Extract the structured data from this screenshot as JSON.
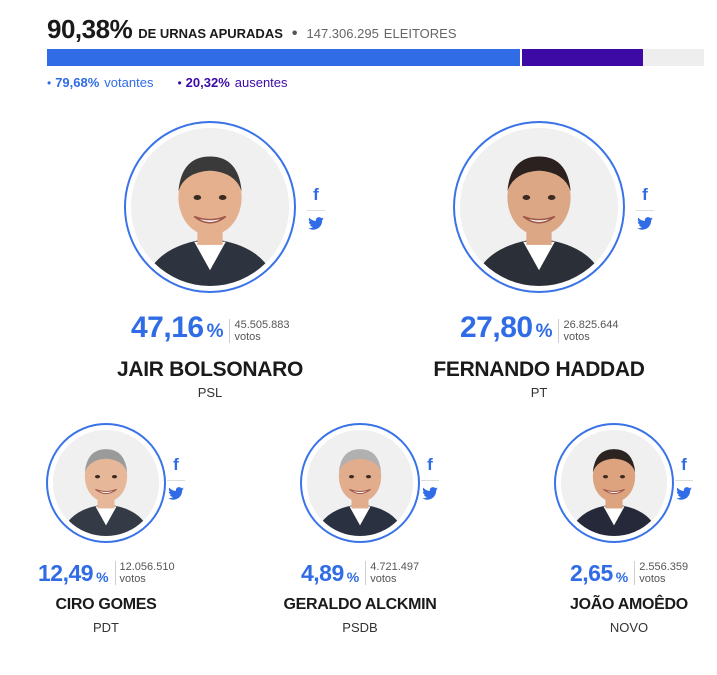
{
  "header": {
    "urnas_pct": "90,38%",
    "urnas_label": "DE URNAS APURADAS",
    "separator": "•",
    "eleitores_count": "147.306.295",
    "eleitores_label": "ELEITORES"
  },
  "turnout": {
    "votantes_fraction": 0.7968,
    "ausentes_fraction": 0.2032,
    "counted_fraction": 0.9038,
    "votantes_pct": "79,68%",
    "votantes_label": "votantes",
    "ausentes_pct": "20,32%",
    "ausentes_label": "ausentes",
    "bullet": "•"
  },
  "colors": {
    "accent_blue": "#2f6ce5",
    "ausentes_purple": "#3d0aa6",
    "bar_track": "#eeeeee"
  },
  "candidates": [
    {
      "name": "JAIR BOLSONARO",
      "party": "PSL",
      "pct": "47,16",
      "pct_sign": "%",
      "votes": "45.505.883",
      "votes_label": "votos",
      "icons": [
        "facebook-icon",
        "twitter-icon"
      ]
    },
    {
      "name": "FERNANDO HADDAD",
      "party": "PT",
      "pct": "27,80",
      "pct_sign": "%",
      "votes": "26.825.644",
      "votes_label": "votos",
      "icons": [
        "facebook-icon",
        "twitter-icon"
      ]
    },
    {
      "name": "CIRO GOMES",
      "party": "PDT",
      "pct": "12,49",
      "pct_sign": "%",
      "votes": "12.056.510",
      "votes_label": "votos",
      "icons": [
        "facebook-icon",
        "twitter-icon"
      ]
    },
    {
      "name": "GERALDO ALCKMIN",
      "party": "PSDB",
      "pct": "4,89",
      "pct_sign": "%",
      "votes": "4.721.497",
      "votes_label": "votos",
      "icons": [
        "facebook-icon",
        "twitter-icon"
      ]
    },
    {
      "name": "JOÃO AMOÊDO",
      "party": "NOVO",
      "pct": "2,65",
      "pct_sign": "%",
      "votes": "2.556.359",
      "votes_label": "votos",
      "icons": [
        "facebook-icon",
        "twitter-icon"
      ]
    }
  ]
}
